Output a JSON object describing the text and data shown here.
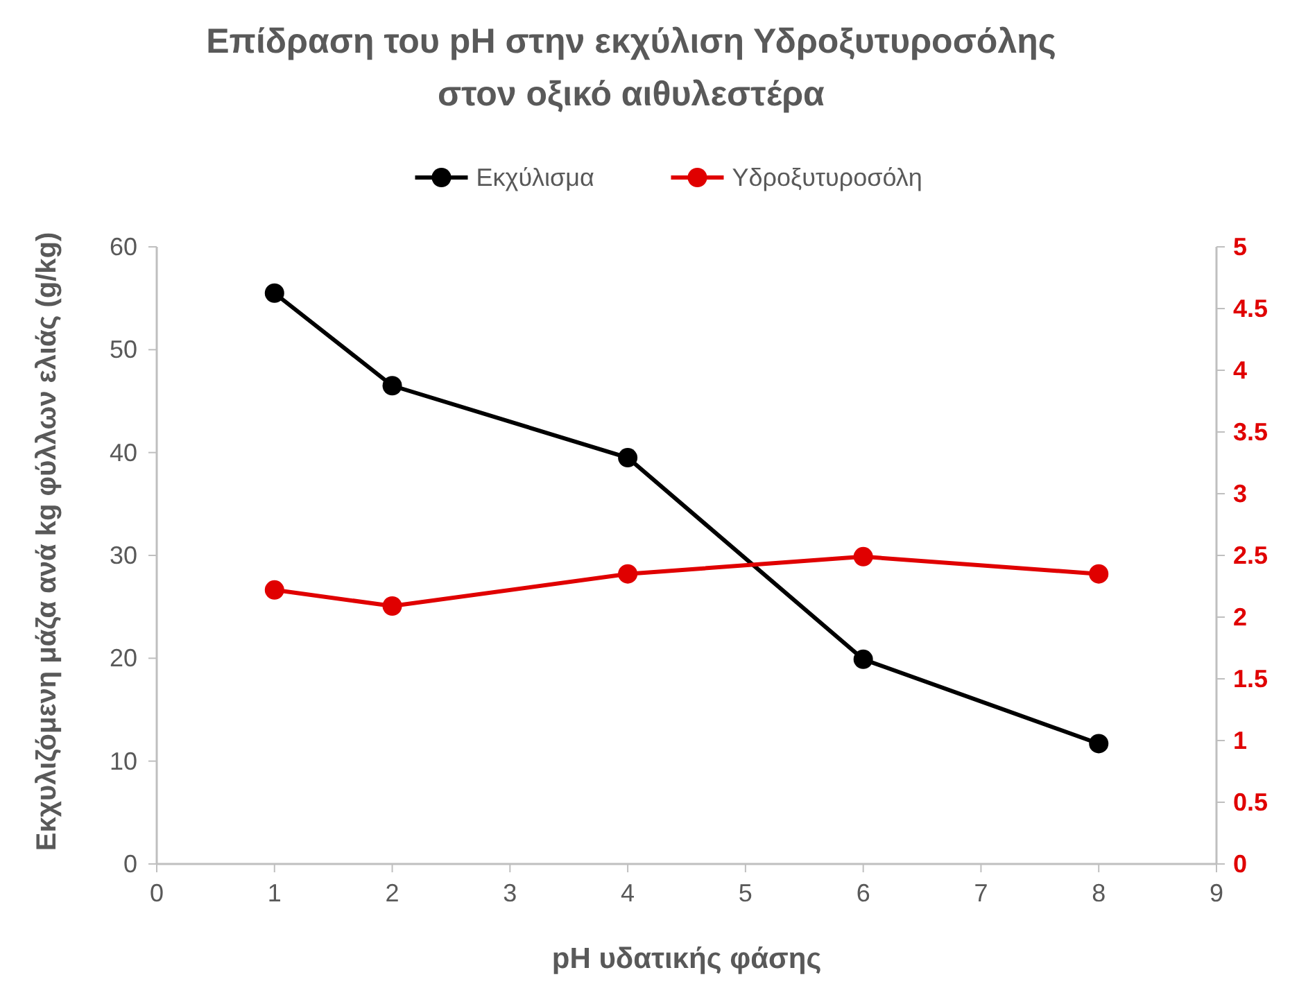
{
  "chart_data": {
    "type": "line",
    "title": "Επίδραση του pH στην εκχύλιση Υδροξυτυροσόλης\nστον οξικό αιθυλεστέρα",
    "xlabel": "pH υδατικής φάσης",
    "ylabel": "Εκχυλιζόμενη μάζα ανά kg φύλλων ελιάς (g/kg)",
    "x": [
      1,
      2,
      4,
      6,
      8
    ],
    "series": [
      {
        "name": "Εκχύλισμα",
        "color": "#000000",
        "values": [
          55.5,
          46.5,
          39.5,
          19.9,
          11.7
        ]
      },
      {
        "name": "Υδροξυτυροσόλη",
        "color": "#e00000",
        "axis": "y2",
        "values": [
          2.22,
          2.09,
          2.35,
          2.49,
          2.35
        ]
      }
    ],
    "xlim": [
      0,
      9
    ],
    "xticks": [
      0,
      1,
      2,
      3,
      4,
      5,
      6,
      7,
      8,
      9
    ],
    "ylim": [
      0,
      60
    ],
    "yticks": [
      0,
      10,
      20,
      30,
      40,
      50,
      60
    ],
    "y2lim": [
      0,
      5
    ],
    "y2ticks": [
      0,
      0.5,
      1,
      1.5,
      2,
      2.5,
      3,
      3.5,
      4,
      4.5,
      5
    ],
    "legend": "top",
    "marker": "circle",
    "line_style": "solid",
    "grid": false
  }
}
